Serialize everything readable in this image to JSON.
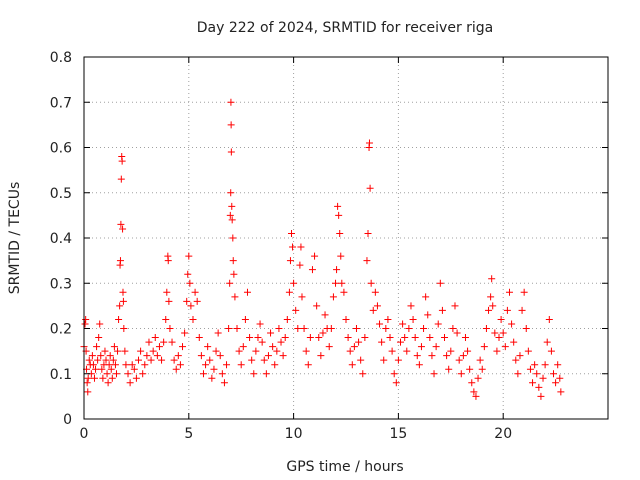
{
  "chart_data": {
    "type": "scatter",
    "title": "Day 222 of 2024, SRMTID for receiver riga",
    "xlabel": "GPS time / hours",
    "ylabel": "SRMTID / TECUs",
    "xlim": [
      0,
      25
    ],
    "ylim": [
      0,
      0.8
    ],
    "x_ticks": [
      0,
      5,
      10,
      15,
      20
    ],
    "y_ticks": [
      0,
      0.1,
      0.2,
      0.3,
      0.4,
      0.5,
      0.6,
      0.7,
      0.8
    ],
    "x_tick_labels": [
      "0",
      "5",
      "10",
      "15",
      "20"
    ],
    "y_tick_labels": [
      "0",
      "0.1",
      "0.2",
      "0.3",
      "0.4",
      "0.5",
      "0.6",
      "0.7",
      "0.8"
    ],
    "grid": true,
    "marker": "+",
    "color": "#ff0000",
    "points": [
      [
        0.0,
        0.16
      ],
      [
        0.05,
        0.21
      ],
      [
        0.08,
        0.22
      ],
      [
        0.1,
        0.15
      ],
      [
        0.12,
        0.11
      ],
      [
        0.15,
        0.08
      ],
      [
        0.18,
        0.06
      ],
      [
        0.2,
        0.09
      ],
      [
        0.25,
        0.13
      ],
      [
        0.3,
        0.12
      ],
      [
        0.35,
        0.1
      ],
      [
        0.4,
        0.14
      ],
      [
        0.45,
        0.12
      ],
      [
        0.5,
        0.09
      ],
      [
        0.55,
        0.11
      ],
      [
        0.6,
        0.16
      ],
      [
        0.65,
        0.13
      ],
      [
        0.7,
        0.18
      ],
      [
        0.75,
        0.21
      ],
      [
        0.8,
        0.14
      ],
      [
        0.85,
        0.11
      ],
      [
        0.9,
        0.09
      ],
      [
        0.95,
        0.12
      ],
      [
        1.0,
        0.15
      ],
      [
        1.05,
        0.13
      ],
      [
        1.1,
        0.1
      ],
      [
        1.15,
        0.08
      ],
      [
        1.2,
        0.12
      ],
      [
        1.25,
        0.14
      ],
      [
        1.3,
        0.11
      ],
      [
        1.35,
        0.09
      ],
      [
        1.4,
        0.13
      ],
      [
        1.45,
        0.16
      ],
      [
        1.5,
        0.12
      ],
      [
        1.55,
        0.1
      ],
      [
        1.6,
        0.15
      ],
      [
        1.65,
        0.22
      ],
      [
        1.7,
        0.25
      ],
      [
        1.72,
        0.34
      ],
      [
        1.74,
        0.35
      ],
      [
        1.76,
        0.43
      ],
      [
        1.78,
        0.53
      ],
      [
        1.8,
        0.58
      ],
      [
        1.82,
        0.57
      ],
      [
        1.84,
        0.42
      ],
      [
        1.86,
        0.28
      ],
      [
        1.88,
        0.26
      ],
      [
        1.9,
        0.2
      ],
      [
        1.95,
        0.15
      ],
      [
        2.0,
        0.12
      ],
      [
        2.1,
        0.1
      ],
      [
        2.2,
        0.08
      ],
      [
        2.3,
        0.12
      ],
      [
        2.4,
        0.11
      ],
      [
        2.5,
        0.09
      ],
      [
        2.6,
        0.13
      ],
      [
        2.7,
        0.15
      ],
      [
        2.8,
        0.1
      ],
      [
        2.9,
        0.12
      ],
      [
        3.0,
        0.14
      ],
      [
        3.1,
        0.17
      ],
      [
        3.2,
        0.13
      ],
      [
        3.3,
        0.15
      ],
      [
        3.4,
        0.18
      ],
      [
        3.5,
        0.14
      ],
      [
        3.6,
        0.16
      ],
      [
        3.7,
        0.13
      ],
      [
        3.8,
        0.17
      ],
      [
        3.9,
        0.22
      ],
      [
        3.95,
        0.28
      ],
      [
        4.0,
        0.36
      ],
      [
        4.02,
        0.35
      ],
      [
        4.05,
        0.26
      ],
      [
        4.1,
        0.2
      ],
      [
        4.2,
        0.17
      ],
      [
        4.3,
        0.13
      ],
      [
        4.4,
        0.11
      ],
      [
        4.5,
        0.14
      ],
      [
        4.6,
        0.12
      ],
      [
        4.7,
        0.16
      ],
      [
        4.8,
        0.19
      ],
      [
        4.9,
        0.26
      ],
      [
        4.95,
        0.32
      ],
      [
        5.0,
        0.36
      ],
      [
        5.05,
        0.3
      ],
      [
        5.1,
        0.25
      ],
      [
        5.2,
        0.22
      ],
      [
        5.3,
        0.28
      ],
      [
        5.4,
        0.26
      ],
      [
        5.5,
        0.18
      ],
      [
        5.6,
        0.14
      ],
      [
        5.7,
        0.1
      ],
      [
        5.8,
        0.12
      ],
      [
        5.9,
        0.16
      ],
      [
        6.0,
        0.13
      ],
      [
        6.1,
        0.09
      ],
      [
        6.2,
        0.11
      ],
      [
        6.3,
        0.15
      ],
      [
        6.4,
        0.19
      ],
      [
        6.5,
        0.14
      ],
      [
        6.6,
        0.1
      ],
      [
        6.7,
        0.08
      ],
      [
        6.8,
        0.12
      ],
      [
        6.9,
        0.2
      ],
      [
        6.95,
        0.3
      ],
      [
        6.98,
        0.45
      ],
      [
        7.0,
        0.5
      ],
      [
        7.01,
        0.7
      ],
      [
        7.02,
        0.65
      ],
      [
        7.03,
        0.59
      ],
      [
        7.05,
        0.47
      ],
      [
        7.07,
        0.44
      ],
      [
        7.1,
        0.4
      ],
      [
        7.12,
        0.35
      ],
      [
        7.15,
        0.32
      ],
      [
        7.2,
        0.27
      ],
      [
        7.3,
        0.2
      ],
      [
        7.4,
        0.15
      ],
      [
        7.5,
        0.12
      ],
      [
        7.6,
        0.16
      ],
      [
        7.7,
        0.22
      ],
      [
        7.8,
        0.28
      ],
      [
        7.9,
        0.18
      ],
      [
        8.0,
        0.13
      ],
      [
        8.1,
        0.1
      ],
      [
        8.2,
        0.15
      ],
      [
        8.3,
        0.18
      ],
      [
        8.4,
        0.21
      ],
      [
        8.5,
        0.17
      ],
      [
        8.6,
        0.13
      ],
      [
        8.7,
        0.1
      ],
      [
        8.8,
        0.14
      ],
      [
        8.9,
        0.19
      ],
      [
        9.0,
        0.16
      ],
      [
        9.1,
        0.12
      ],
      [
        9.2,
        0.15
      ],
      [
        9.3,
        0.2
      ],
      [
        9.4,
        0.17
      ],
      [
        9.5,
        0.14
      ],
      [
        9.6,
        0.18
      ],
      [
        9.7,
        0.22
      ],
      [
        9.8,
        0.28
      ],
      [
        9.85,
        0.35
      ],
      [
        9.9,
        0.41
      ],
      [
        9.95,
        0.38
      ],
      [
        10.0,
        0.3
      ],
      [
        10.1,
        0.24
      ],
      [
        10.2,
        0.2
      ],
      [
        10.3,
        0.34
      ],
      [
        10.35,
        0.38
      ],
      [
        10.4,
        0.27
      ],
      [
        10.5,
        0.2
      ],
      [
        10.6,
        0.15
      ],
      [
        10.7,
        0.12
      ],
      [
        10.8,
        0.18
      ],
      [
        10.9,
        0.33
      ],
      [
        11.0,
        0.36
      ],
      [
        11.1,
        0.25
      ],
      [
        11.2,
        0.18
      ],
      [
        11.3,
        0.14
      ],
      [
        11.4,
        0.19
      ],
      [
        11.5,
        0.23
      ],
      [
        11.6,
        0.2
      ],
      [
        11.7,
        0.16
      ],
      [
        11.8,
        0.2
      ],
      [
        11.9,
        0.27
      ],
      [
        12.0,
        0.3
      ],
      [
        12.05,
        0.33
      ],
      [
        12.1,
        0.47
      ],
      [
        12.15,
        0.45
      ],
      [
        12.2,
        0.41
      ],
      [
        12.25,
        0.36
      ],
      [
        12.3,
        0.3
      ],
      [
        12.4,
        0.28
      ],
      [
        12.5,
        0.22
      ],
      [
        12.6,
        0.18
      ],
      [
        12.7,
        0.15
      ],
      [
        12.8,
        0.12
      ],
      [
        12.9,
        0.16
      ],
      [
        13.0,
        0.2
      ],
      [
        13.1,
        0.17
      ],
      [
        13.2,
        0.13
      ],
      [
        13.3,
        0.1
      ],
      [
        13.4,
        0.18
      ],
      [
        13.5,
        0.35
      ],
      [
        13.55,
        0.41
      ],
      [
        13.6,
        0.6
      ],
      [
        13.62,
        0.61
      ],
      [
        13.65,
        0.51
      ],
      [
        13.7,
        0.3
      ],
      [
        13.8,
        0.24
      ],
      [
        13.9,
        0.28
      ],
      [
        14.0,
        0.25
      ],
      [
        14.1,
        0.21
      ],
      [
        14.2,
        0.17
      ],
      [
        14.3,
        0.13
      ],
      [
        14.4,
        0.2
      ],
      [
        14.5,
        0.22
      ],
      [
        14.6,
        0.18
      ],
      [
        14.7,
        0.15
      ],
      [
        14.8,
        0.1
      ],
      [
        14.9,
        0.08
      ],
      [
        15.0,
        0.13
      ],
      [
        15.1,
        0.17
      ],
      [
        15.2,
        0.21
      ],
      [
        15.3,
        0.18
      ],
      [
        15.4,
        0.15
      ],
      [
        15.5,
        0.2
      ],
      [
        15.6,
        0.25
      ],
      [
        15.7,
        0.22
      ],
      [
        15.8,
        0.18
      ],
      [
        15.9,
        0.14
      ],
      [
        16.0,
        0.12
      ],
      [
        16.1,
        0.16
      ],
      [
        16.2,
        0.2
      ],
      [
        16.3,
        0.27
      ],
      [
        16.4,
        0.23
      ],
      [
        16.5,
        0.18
      ],
      [
        16.6,
        0.14
      ],
      [
        16.7,
        0.1
      ],
      [
        16.8,
        0.16
      ],
      [
        16.9,
        0.21
      ],
      [
        17.0,
        0.3
      ],
      [
        17.1,
        0.24
      ],
      [
        17.2,
        0.18
      ],
      [
        17.3,
        0.14
      ],
      [
        17.4,
        0.11
      ],
      [
        17.5,
        0.15
      ],
      [
        17.6,
        0.2
      ],
      [
        17.7,
        0.25
      ],
      [
        17.8,
        0.19
      ],
      [
        17.9,
        0.13
      ],
      [
        18.0,
        0.1
      ],
      [
        18.1,
        0.14
      ],
      [
        18.2,
        0.18
      ],
      [
        18.3,
        0.15
      ],
      [
        18.4,
        0.11
      ],
      [
        18.5,
        0.08
      ],
      [
        18.6,
        0.06
      ],
      [
        18.7,
        0.05
      ],
      [
        18.8,
        0.09
      ],
      [
        18.9,
        0.13
      ],
      [
        19.0,
        0.11
      ],
      [
        19.1,
        0.16
      ],
      [
        19.2,
        0.2
      ],
      [
        19.3,
        0.24
      ],
      [
        19.4,
        0.27
      ],
      [
        19.45,
        0.31
      ],
      [
        19.5,
        0.25
      ],
      [
        19.6,
        0.19
      ],
      [
        19.7,
        0.15
      ],
      [
        19.8,
        0.18
      ],
      [
        19.9,
        0.22
      ],
      [
        20.0,
        0.19
      ],
      [
        20.1,
        0.16
      ],
      [
        20.2,
        0.24
      ],
      [
        20.3,
        0.28
      ],
      [
        20.4,
        0.21
      ],
      [
        20.5,
        0.17
      ],
      [
        20.6,
        0.13
      ],
      [
        20.7,
        0.1
      ],
      [
        20.8,
        0.14
      ],
      [
        20.9,
        0.24
      ],
      [
        21.0,
        0.28
      ],
      [
        21.1,
        0.2
      ],
      [
        21.2,
        0.15
      ],
      [
        21.3,
        0.11
      ],
      [
        21.4,
        0.08
      ],
      [
        21.5,
        0.12
      ],
      [
        21.6,
        0.1
      ],
      [
        21.7,
        0.07
      ],
      [
        21.8,
        0.05
      ],
      [
        21.9,
        0.09
      ],
      [
        22.0,
        0.12
      ],
      [
        22.1,
        0.17
      ],
      [
        22.2,
        0.22
      ],
      [
        22.3,
        0.15
      ],
      [
        22.4,
        0.1
      ],
      [
        22.5,
        0.08
      ],
      [
        22.6,
        0.12
      ],
      [
        22.7,
        0.09
      ],
      [
        22.75,
        0.06
      ]
    ]
  }
}
